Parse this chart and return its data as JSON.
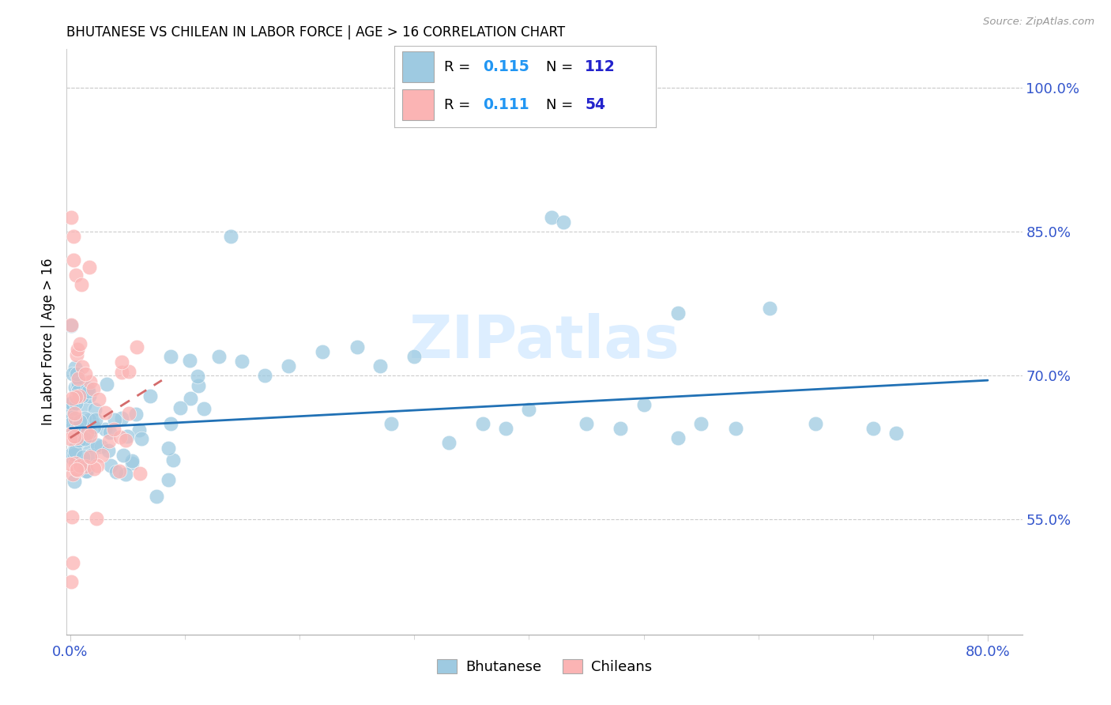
{
  "title": "BHUTANESE VS CHILEAN IN LABOR FORCE | AGE > 16 CORRELATION CHART",
  "source": "Source: ZipAtlas.com",
  "ylabel": "In Labor Force | Age > 16",
  "blue_color": "#9ecae1",
  "pink_color": "#fbb4b4",
  "trend_blue": "#2171b5",
  "trend_pink": "#d46b6b",
  "R_color": "#2196f3",
  "N_color": "#2222cc",
  "xmin": -0.003,
  "xmax": 0.83,
  "ymin": 43.0,
  "ymax": 104.0,
  "yticks": [
    55.0,
    70.0,
    85.0,
    100.0
  ],
  "xticks": [
    0.0,
    0.8
  ],
  "grid_color": "#cccccc",
  "axis_label_color": "#3355cc",
  "watermark": "ZIPatlas",
  "blue_trend_x0": 0.0,
  "blue_trend_y0": 64.5,
  "blue_trend_x1": 0.8,
  "blue_trend_y1": 69.5,
  "pink_trend_x0": 0.0,
  "pink_trend_y0": 63.5,
  "pink_trend_x1": 0.08,
  "pink_trend_y1": 69.5
}
